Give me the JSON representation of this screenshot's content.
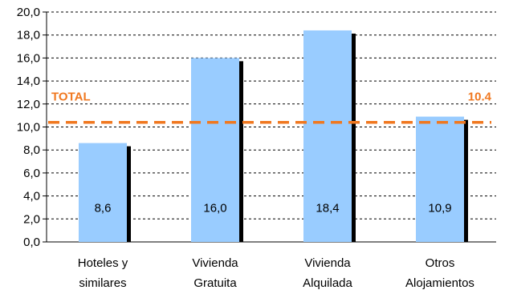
{
  "chart_data": {
    "type": "bar",
    "categories": [
      [
        "Hoteles y",
        "similares"
      ],
      [
        "Vivienda",
        "Gratuita"
      ],
      [
        "Vivienda",
        "Alquilada"
      ],
      [
        "Otros",
        "Alojamientos"
      ]
    ],
    "values": [
      8.6,
      16.0,
      18.4,
      10.9
    ],
    "data_labels": [
      "8,6",
      "16,0",
      "18,4",
      "10,9"
    ],
    "ylim": [
      0,
      20
    ],
    "y_ticks": [
      "0,0",
      "2,0",
      "4,0",
      "6,0",
      "8,0",
      "10,0",
      "12,0",
      "14,0",
      "16,0",
      "18,0",
      "20,0"
    ],
    "grid": true,
    "reference_line": {
      "value": 10.4,
      "label": "TOTAL",
      "value_label": "10.4"
    },
    "colors": {
      "bar": "#99ccff",
      "bar_shadow": "#000000",
      "reference": "#f07820",
      "grid": "#000000"
    }
  }
}
